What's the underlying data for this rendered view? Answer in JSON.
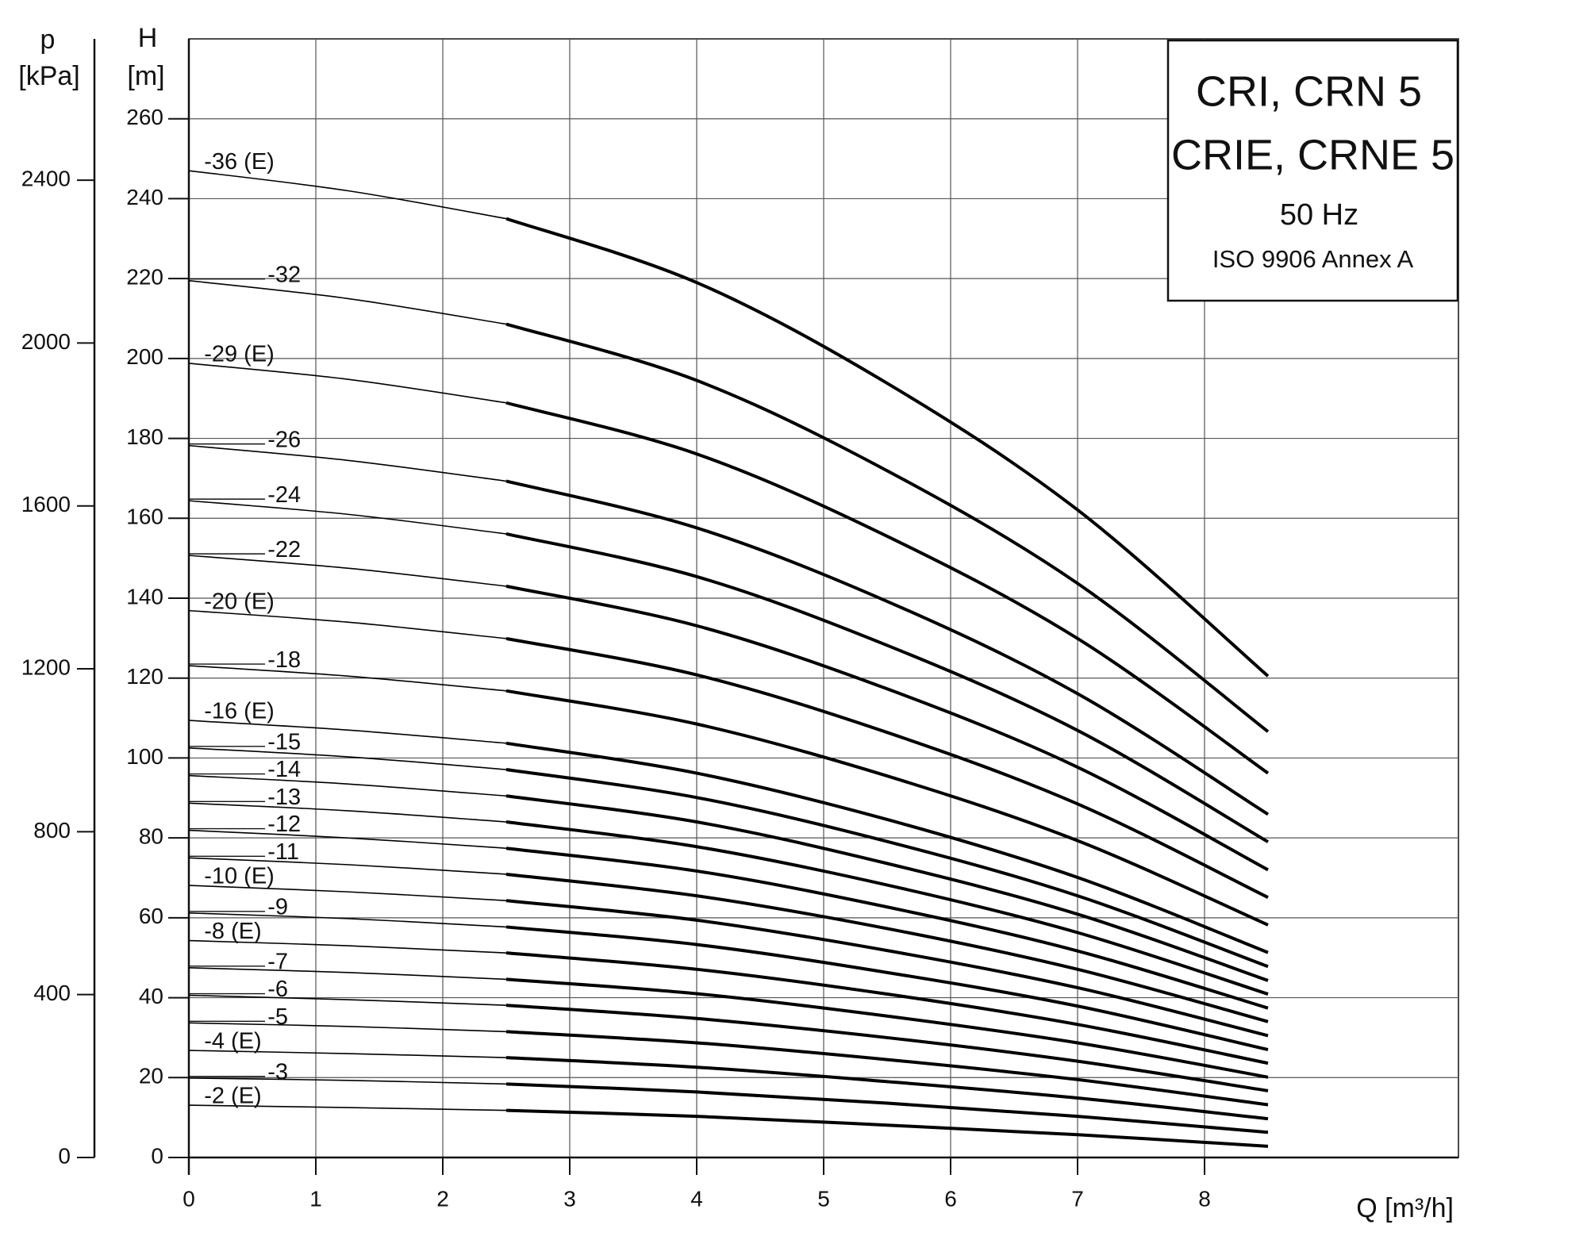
{
  "chart_data": {
    "type": "line",
    "title_lines": [
      "CRI, CRN 5",
      "CRIE, CRNE 5",
      "50 Hz",
      "ISO 9906 Annex A"
    ],
    "x_label": "Q [m³/h]",
    "y_label": [
      "H",
      "[m]"
    ],
    "y2_label": [
      "p",
      "[kPa]"
    ],
    "x": [
      0,
      1.25,
      2.5,
      4,
      5.5,
      7,
      8.5
    ],
    "xlim": [
      0,
      10
    ],
    "xticks": [
      0,
      1,
      2,
      3,
      4,
      5,
      6,
      7,
      8
    ],
    "ylim": [
      0,
      280
    ],
    "yticks": [
      0,
      20,
      40,
      60,
      80,
      100,
      120,
      140,
      160,
      180,
      200,
      220,
      240,
      260
    ],
    "y2lim": [
      0,
      2747
    ],
    "y2ticks": [
      0,
      400,
      800,
      1200,
      1600,
      2000,
      2400
    ],
    "grid": true,
    "series": [
      {
        "name": "-36 (E)",
        "color": "#000000",
        "values": [
          247,
          242,
          235,
          219,
          193.8,
          162.1,
          120.5
        ]
      },
      {
        "name": "-32",
        "color": "#000000",
        "values": [
          219.5,
          215,
          208.6,
          194.5,
          171.9,
          143.7,
          106.6
        ]
      },
      {
        "name": "-29 (E)",
        "color": "#000000",
        "values": [
          198.8,
          194.8,
          188.9,
          176.1,
          155.5,
          129.9,
          96.2
        ]
      },
      {
        "name": "-26",
        "color": "#000000",
        "values": [
          178.2,
          174.5,
          169.3,
          157.6,
          139.2,
          116.1,
          85.9
        ]
      },
      {
        "name": "-24",
        "color": "#000000",
        "values": [
          164.4,
          161,
          156.1,
          145.4,
          128.2,
          106.9,
          79
        ]
      },
      {
        "name": "-22",
        "color": "#000000",
        "values": [
          150.7,
          147.5,
          143,
          133.1,
          117.3,
          97.7,
          72
        ]
      },
      {
        "name": "-20 (E)",
        "color": "#000000",
        "values": [
          136.9,
          134,
          129.9,
          120.8,
          106.4,
          88.5,
          65.1
        ]
      },
      {
        "name": "-18",
        "color": "#000000",
        "values": [
          123.1,
          120.5,
          116.8,
          108.5,
          95.5,
          79.3,
          58.2
        ]
      },
      {
        "name": "-16 (E)",
        "color": "#000000",
        "values": [
          109.4,
          107,
          103.7,
          96.2,
          84.6,
          70.1,
          51.3
        ]
      },
      {
        "name": "-15",
        "color": "#000000",
        "values": [
          102.5,
          100.3,
          97.1,
          90.1,
          79.1,
          65.5,
          47.8
        ]
      },
      {
        "name": "-14",
        "color": "#000000",
        "values": [
          95.6,
          93.5,
          90.5,
          84,
          73.6,
          60.9,
          44.3
        ]
      },
      {
        "name": "-13",
        "color": "#000000",
        "values": [
          88.7,
          86.8,
          84,
          77.8,
          68.2,
          56.3,
          40.9
        ]
      },
      {
        "name": "-12",
        "color": "#000000",
        "values": [
          81.9,
          80,
          77.4,
          71.7,
          62.7,
          51.7,
          37.4
        ]
      },
      {
        "name": "-11",
        "color": "#000000",
        "values": [
          75,
          73.3,
          70.9,
          65.5,
          57.3,
          47.1,
          34
        ]
      },
      {
        "name": "-10 (E)",
        "color": "#000000",
        "values": [
          68.1,
          66.5,
          64.3,
          59.4,
          51.8,
          42.5,
          30.5
        ]
      },
      {
        "name": "-9",
        "color": "#000000",
        "values": [
          61.2,
          59.8,
          57.7,
          53.3,
          46.3,
          37.9,
          27
        ]
      },
      {
        "name": "-8 (E)",
        "color": "#000000",
        "values": [
          54.3,
          53,
          51.2,
          47.1,
          40.9,
          33.3,
          23.6
        ]
      },
      {
        "name": "-7",
        "color": "#000000",
        "values": [
          47.5,
          46.3,
          44.6,
          41,
          35.4,
          28.7,
          20.1
        ]
      },
      {
        "name": "-6",
        "color": "#000000",
        "values": [
          40.6,
          39.5,
          38.1,
          34.8,
          30,
          24.1,
          16.7
        ]
      },
      {
        "name": "-5",
        "color": "#000000",
        "values": [
          33.7,
          32.8,
          31.5,
          28.7,
          24.5,
          19.5,
          13.2
        ]
      },
      {
        "name": "-4 (E)",
        "color": "#000000",
        "values": [
          26.8,
          26,
          25,
          22.6,
          19,
          14.9,
          9.7
        ]
      },
      {
        "name": "-3",
        "color": "#000000",
        "values": [
          19.9,
          19.3,
          18.4,
          16.4,
          13.6,
          10.3,
          6.3
        ]
      },
      {
        "name": "-2 (E)",
        "color": "#000000",
        "values": [
          13.1,
          12.5,
          11.8,
          10.3,
          8.1,
          5.7,
          2.8
        ]
      }
    ]
  }
}
